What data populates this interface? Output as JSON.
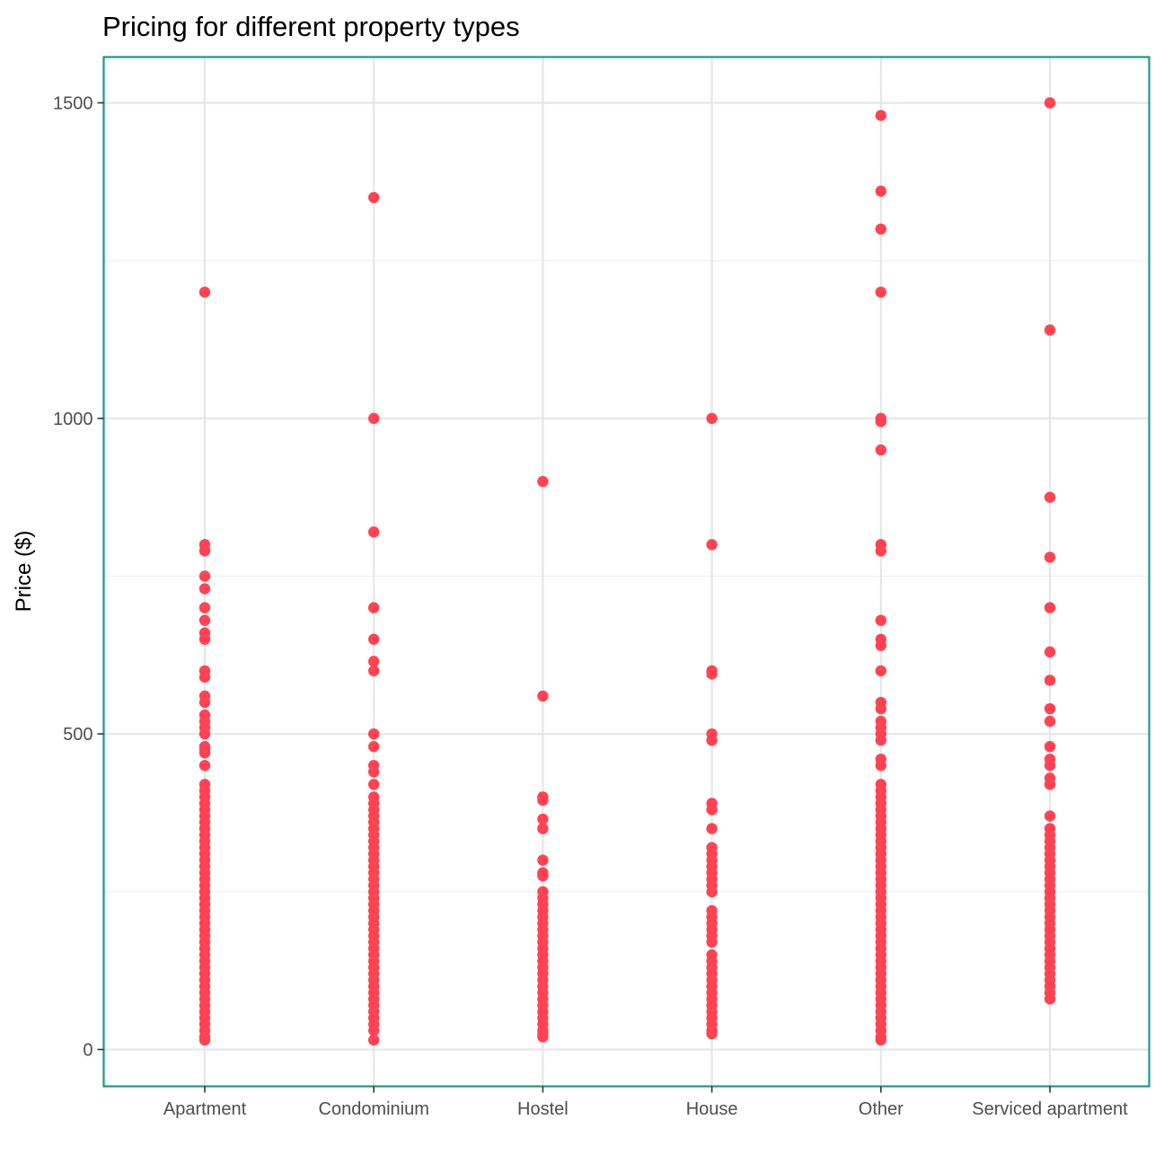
{
  "chart_data": {
    "type": "scatter",
    "title": "Pricing for different property types",
    "xlabel": "",
    "ylabel": "Price ($)",
    "categories": [
      "Apartment",
      "Condominium",
      "Hostel",
      "House",
      "Other",
      "Serviced apartment"
    ],
    "y_ticks": [
      "0",
      "500",
      "1000",
      "1500"
    ],
    "ylim": [
      -60,
      1575
    ],
    "grid": true,
    "panel_border_color": "#1A9A86",
    "point_color": "#FF4353",
    "series": [
      {
        "category": "Apartment",
        "values": [
          1200,
          800,
          790,
          750,
          730,
          700,
          680,
          660,
          650,
          600,
          590,
          560,
          550,
          530,
          520,
          510,
          500,
          480,
          475,
          470,
          450,
          420,
          410,
          400,
          390,
          380,
          370,
          360,
          350,
          340,
          330,
          320,
          310,
          300,
          290,
          280,
          270,
          260,
          250,
          240,
          230,
          220,
          210,
          200,
          190,
          180,
          170,
          160,
          150,
          140,
          130,
          120,
          110,
          100,
          90,
          80,
          70,
          60,
          50,
          40,
          30,
          20,
          15
        ]
      },
      {
        "category": "Condominium",
        "values": [
          1350,
          1000,
          820,
          700,
          650,
          615,
          600,
          500,
          480,
          450,
          440,
          420,
          400,
          390,
          380,
          370,
          360,
          350,
          340,
          330,
          320,
          310,
          300,
          290,
          280,
          270,
          260,
          250,
          240,
          230,
          220,
          210,
          200,
          190,
          180,
          170,
          160,
          150,
          140,
          130,
          120,
          110,
          100,
          90,
          80,
          70,
          60,
          50,
          40,
          30,
          15
        ]
      },
      {
        "category": "Hostel",
        "values": [
          900,
          560,
          400,
          395,
          365,
          350,
          300,
          280,
          275,
          250,
          240,
          230,
          220,
          210,
          200,
          190,
          180,
          170,
          160,
          150,
          140,
          130,
          120,
          110,
          100,
          90,
          80,
          70,
          60,
          50,
          40,
          30,
          25,
          20
        ]
      },
      {
        "category": "House",
        "values": [
          1000,
          800,
          600,
          595,
          500,
          490,
          390,
          380,
          350,
          320,
          310,
          300,
          290,
          280,
          270,
          260,
          250,
          220,
          210,
          200,
          190,
          180,
          170,
          150,
          140,
          130,
          120,
          110,
          100,
          90,
          80,
          70,
          60,
          50,
          40,
          30,
          25
        ]
      },
      {
        "category": "Other",
        "values": [
          1480,
          1360,
          1300,
          1200,
          1000,
          995,
          950,
          800,
          790,
          680,
          650,
          640,
          600,
          550,
          540,
          520,
          510,
          500,
          490,
          460,
          450,
          420,
          410,
          400,
          390,
          380,
          370,
          360,
          350,
          340,
          330,
          320,
          310,
          300,
          290,
          280,
          270,
          260,
          250,
          240,
          230,
          220,
          210,
          200,
          190,
          180,
          170,
          160,
          150,
          140,
          130,
          120,
          110,
          100,
          90,
          80,
          70,
          60,
          50,
          40,
          30,
          20,
          15
        ]
      },
      {
        "category": "Serviced apartment",
        "values": [
          1500,
          1140,
          875,
          780,
          700,
          630,
          585,
          540,
          520,
          480,
          460,
          450,
          430,
          420,
          370,
          350,
          340,
          330,
          320,
          310,
          300,
          290,
          280,
          270,
          260,
          250,
          240,
          230,
          220,
          210,
          200,
          190,
          180,
          170,
          160,
          150,
          140,
          130,
          120,
          110,
          100,
          90,
          80
        ]
      }
    ]
  }
}
